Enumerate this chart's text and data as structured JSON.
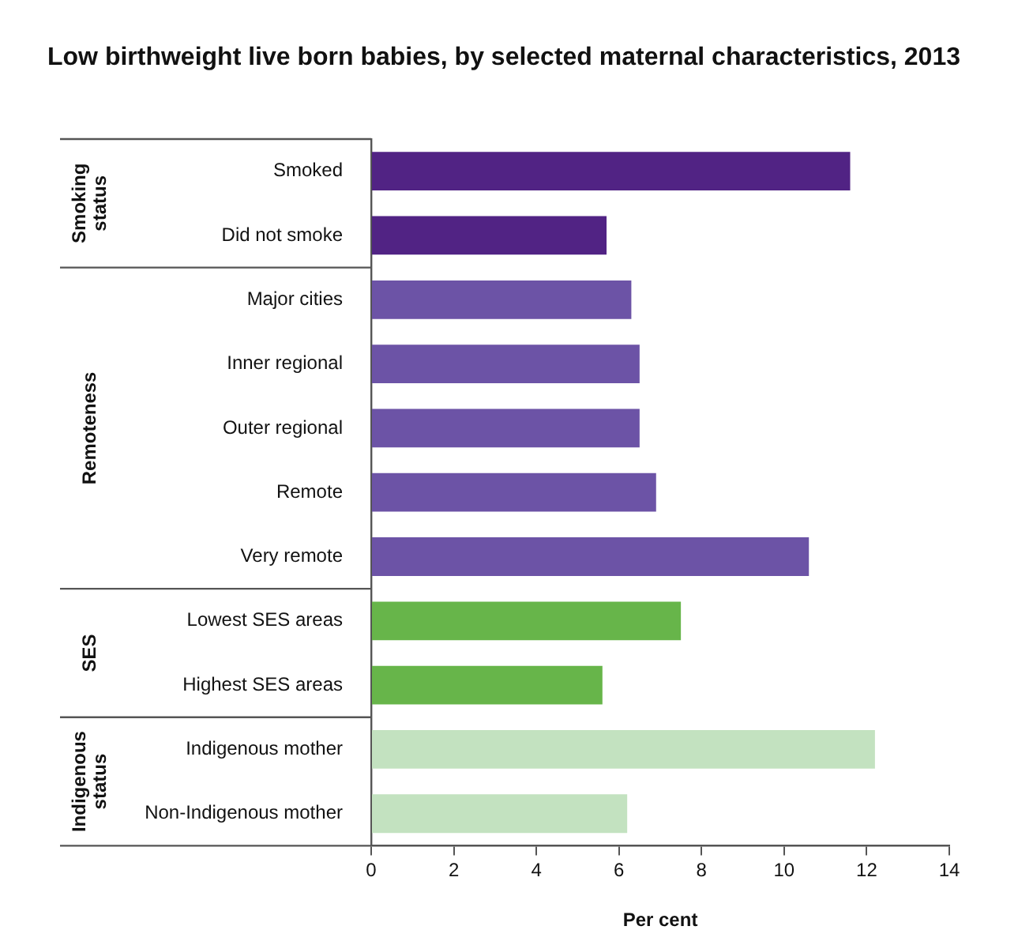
{
  "chart_data": {
    "type": "bar",
    "orientation": "horizontal",
    "title": "Low birthweight live born babies, by selected maternal characteristics, 2013",
    "xlabel": "Per cent",
    "categories": [
      "Smoked",
      "Did not smoke",
      "Major cities",
      "Inner regional",
      "Outer regional",
      "Remote",
      "Very remote",
      "Lowest SES areas",
      "Highest SES areas",
      "Indigenous mother",
      "Non-Indigenous mother"
    ],
    "values": [
      11.6,
      5.7,
      6.3,
      6.5,
      6.5,
      6.9,
      10.6,
      7.5,
      5.6,
      12.2,
      6.2
    ],
    "colors": [
      "#512384",
      "#512384",
      "#6c53a6",
      "#6c53a6",
      "#6c53a6",
      "#6c53a6",
      "#6c53a6",
      "#67b54a",
      "#67b54a",
      "#c3e2c0",
      "#c3e2c0"
    ],
    "annotations": [
      "Smoking status",
      "Remoteness",
      "SES",
      "Indigenous status"
    ],
    "xlim": [
      0,
      14
    ],
    "xticks": [
      0,
      2,
      4,
      6,
      8,
      10,
      12,
      14
    ],
    "grid": false,
    "legend": false
  }
}
